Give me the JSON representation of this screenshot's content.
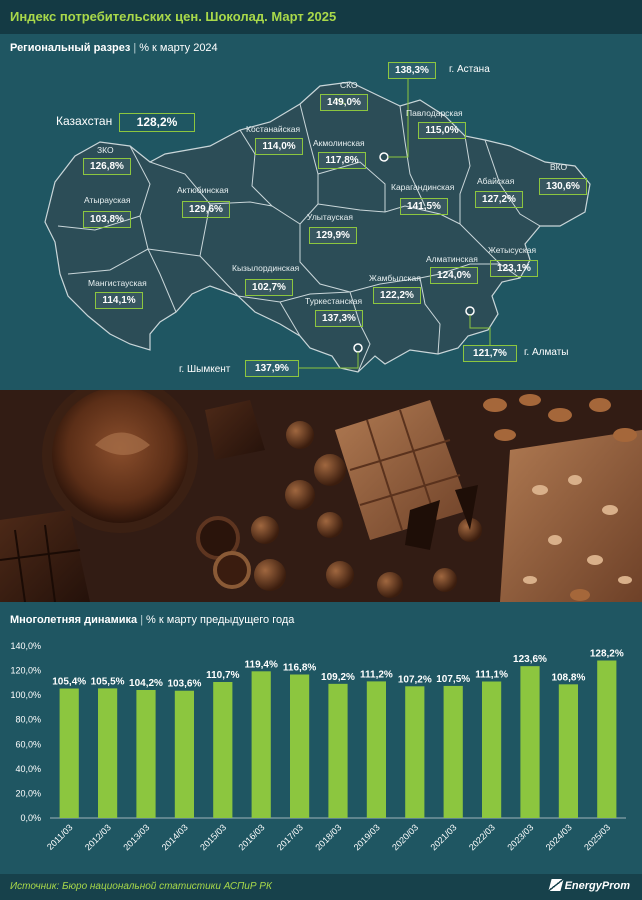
{
  "header": {
    "title": "Индекс потребительских цен. Шоколад. Март 2025"
  },
  "map_section": {
    "heading_bold": "Региональный разрез",
    "heading_rest": "% к марту 2024",
    "country": {
      "name": "Казахстан",
      "value": "128,2%"
    },
    "regions": [
      {
        "name": "ЗКО",
        "value": "126,8%"
      },
      {
        "name": "Атырауская",
        "value": "103,8%"
      },
      {
        "name": "Мангистауская",
        "value": "114,1%"
      },
      {
        "name": "Актюбинская",
        "value": "129,6%"
      },
      {
        "name": "Костанайская",
        "value": "114,0%"
      },
      {
        "name": "СКО",
        "value": "149,0%"
      },
      {
        "name": "Акмолинская",
        "value": "117,8%"
      },
      {
        "name": "Павлодарская",
        "value": "115,0%"
      },
      {
        "name": "Кызылординская",
        "value": "102,7%"
      },
      {
        "name": "Улытауская",
        "value": "129,9%"
      },
      {
        "name": "Карагандинская",
        "value": "141,5%"
      },
      {
        "name": "Абайская",
        "value": "127,2%"
      },
      {
        "name": "ВКО",
        "value": "130,6%"
      },
      {
        "name": "Туркестанская",
        "value": "137,3%"
      },
      {
        "name": "Жамбылская",
        "value": "122,2%"
      },
      {
        "name": "Алматинская",
        "value": "124,0%"
      },
      {
        "name": "Жетысуская",
        "value": "123,1%"
      }
    ],
    "cities": [
      {
        "name": "г. Астана",
        "value": "138,3%"
      },
      {
        "name": "г. Шымкент",
        "value": "137,9%"
      },
      {
        "name": "г. Алматы",
        "value": "121,7%"
      }
    ]
  },
  "chart_section": {
    "heading_bold": "Многолетняя динамика",
    "heading_rest": "% к марту предыдущего года"
  },
  "chart_data": {
    "type": "bar",
    "categories": [
      "2011/03",
      "2012/03",
      "2013/03",
      "2014/03",
      "2015/03",
      "2016/03",
      "2017/03",
      "2018/03",
      "2019/03",
      "2020/03",
      "2021/03",
      "2022/03",
      "2023/03",
      "2024/03",
      "2025/03"
    ],
    "values": [
      105.4,
      105.5,
      104.2,
      103.6,
      110.7,
      119.4,
      116.8,
      109.2,
      111.2,
      107.2,
      107.5,
      111.1,
      123.6,
      108.8,
      128.2
    ],
    "data_labels": [
      "105,4%",
      "105,5%",
      "104,2%",
      "103,6%",
      "110,7%",
      "119,4%",
      "116,8%",
      "109,2%",
      "111,2%",
      "107,2%",
      "107,5%",
      "111,1%",
      "123,6%",
      "108,8%",
      "128,2%"
    ],
    "yticks": [
      "0,0%",
      "20,0%",
      "40,0%",
      "60,0%",
      "80,0%",
      "100,0%",
      "120,0%",
      "140,0%"
    ],
    "ylim": [
      0,
      140
    ],
    "grid": false,
    "colors": {
      "bar": "#8cc63f",
      "label": "#ffffff"
    }
  },
  "footer": {
    "source": "Источник: Бюро национальной статистики АСПиР РК",
    "logo": "EnergyProm"
  },
  "colors": {
    "background": "#1f5662",
    "accent": "#8cc63f",
    "title": "#a9d94a",
    "map_fill": "#2c4d57",
    "map_stroke": "#c9d6d9"
  }
}
